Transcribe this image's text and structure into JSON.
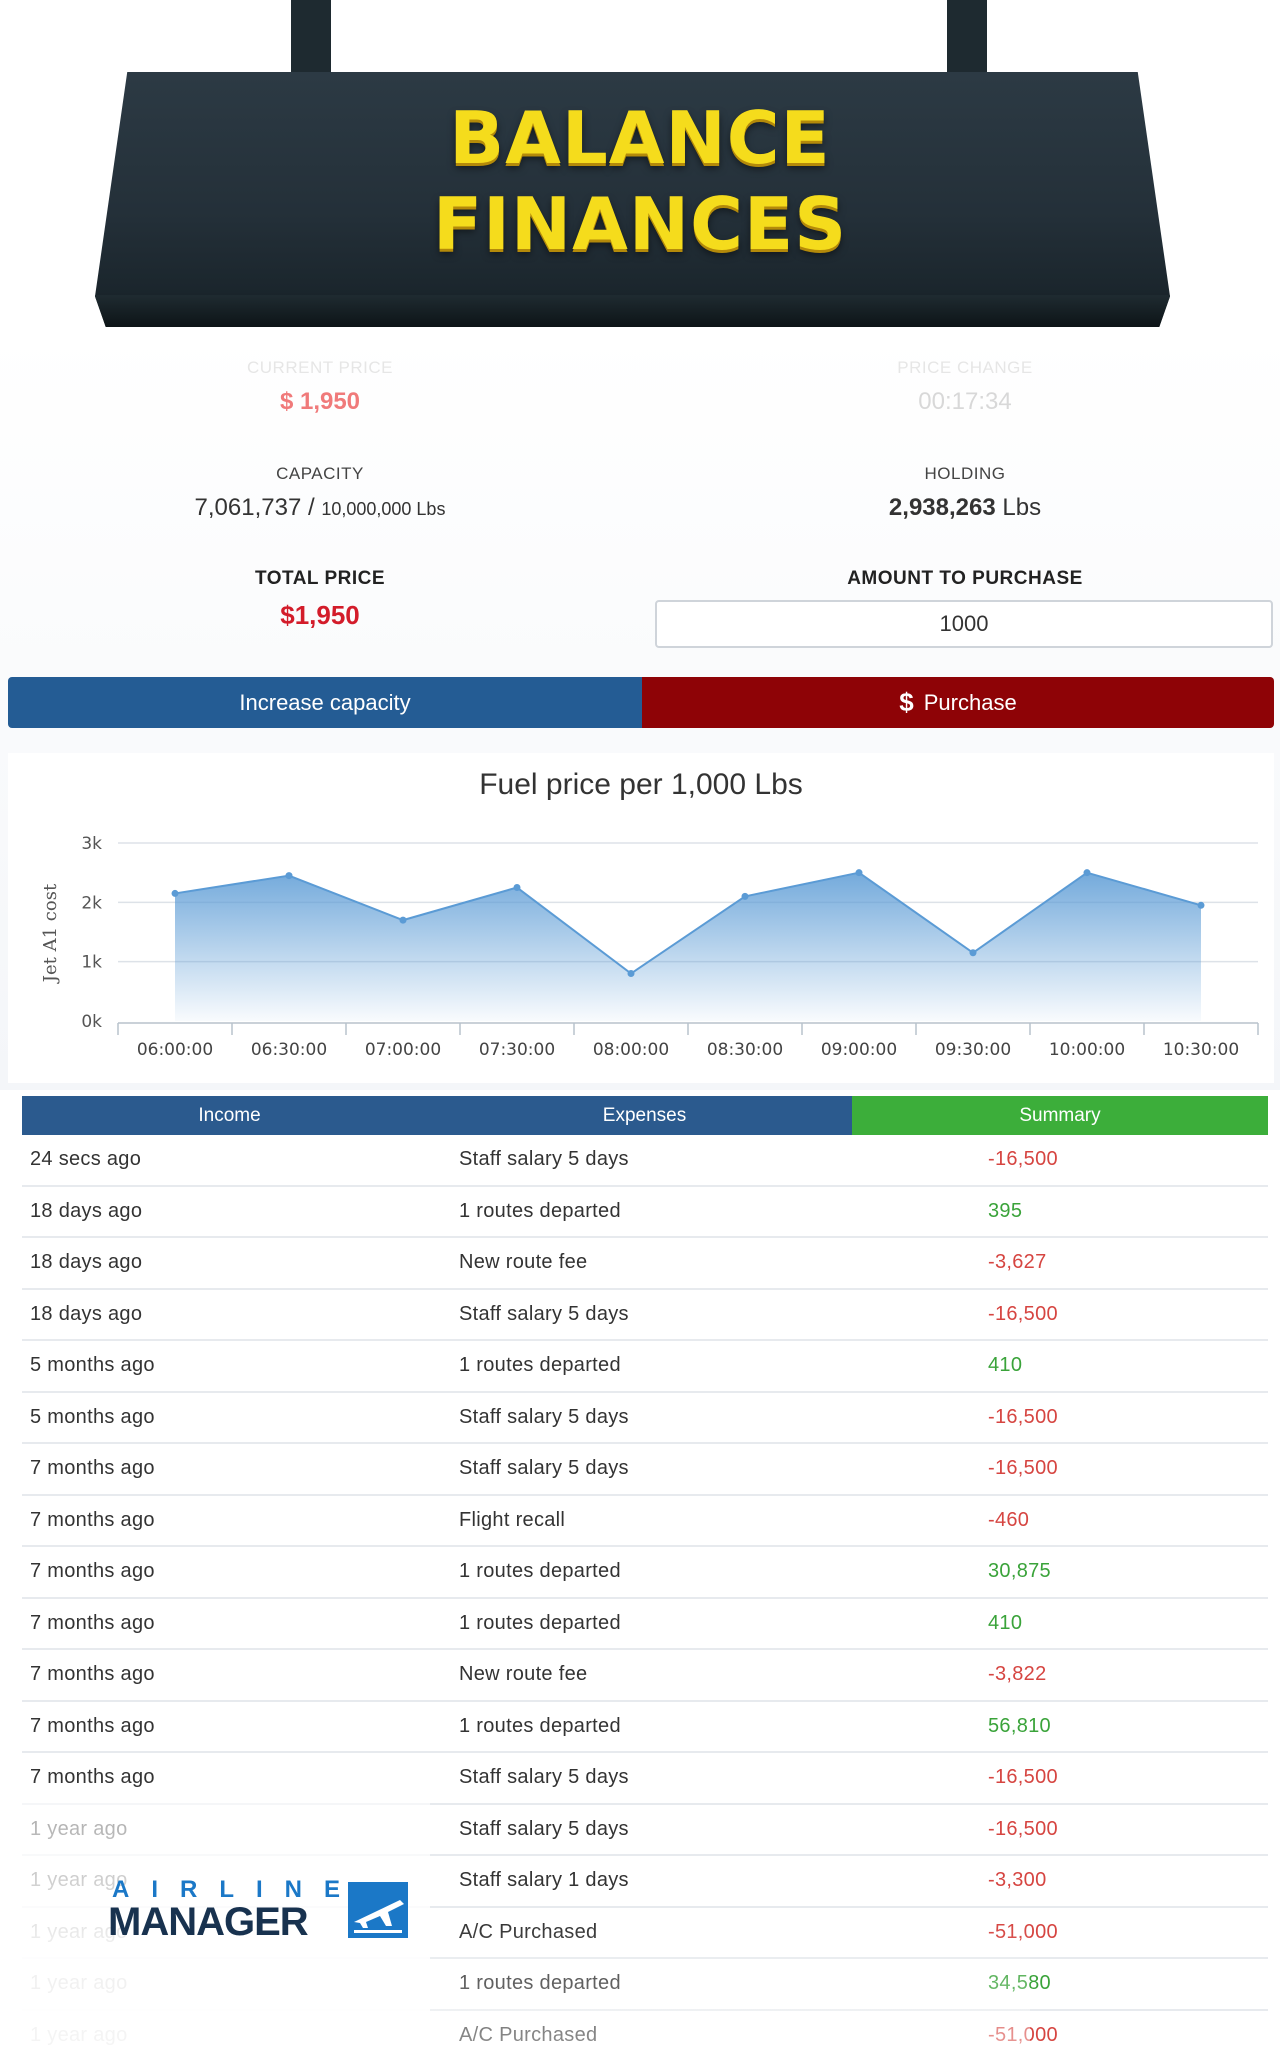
{
  "banner": {
    "line1": "BALANCE",
    "line2": "FINANCES"
  },
  "stats": {
    "current_price": {
      "label": "CURRENT PRICE",
      "value": "$ 1,950"
    },
    "price_change": {
      "label": "PRICE CHANGE",
      "value": "00:17:34"
    },
    "capacity": {
      "label": "CAPACITY",
      "used": "7,061,737",
      "sep": "/",
      "max": "10,000,000 Lbs"
    },
    "holding": {
      "label": "HOLDING",
      "value": "2,938,263",
      "unit": "Lbs"
    },
    "total_price": {
      "label": "TOTAL PRICE",
      "value": "$1,950"
    },
    "amount": {
      "label": "AMOUNT TO PURCHASE",
      "value": "1000"
    }
  },
  "buttons": {
    "increase_capacity": "Increase capacity",
    "purchase_icon": "$",
    "purchase": "Purchase"
  },
  "colors": {
    "blue": "#245c94",
    "red": "#8e0306",
    "green": "#3cae3a",
    "banner_text": "#f5dc1c"
  },
  "chart_data": {
    "type": "area",
    "title": "Fuel price per 1,000 Lbs",
    "ylabel": "Jet A1 cost",
    "xlabel": "",
    "ylim": [
      0,
      3000
    ],
    "yticks": [
      "0k",
      "1k",
      "2k",
      "3k"
    ],
    "categories": [
      "06:00:00",
      "06:30:00",
      "07:00:00",
      "07:30:00",
      "08:00:00",
      "08:30:00",
      "09:00:00",
      "09:30:00",
      "10:00:00",
      "10:30:00"
    ],
    "values": [
      2150,
      2450,
      1700,
      2250,
      800,
      2100,
      2500,
      1150,
      2500,
      1950
    ],
    "grid": true,
    "color": "#5b9bd5"
  },
  "table": {
    "headers": [
      "Income",
      "Expenses",
      "Summary"
    ],
    "rows": [
      {
        "time": "24 secs ago",
        "desc": "Staff salary 5 days",
        "amount": "-16,500",
        "sign": "neg"
      },
      {
        "time": "18 days ago",
        "desc": "1 routes departed",
        "amount": "395",
        "sign": "pos"
      },
      {
        "time": "18 days ago",
        "desc": "New route fee",
        "amount": "-3,627",
        "sign": "neg"
      },
      {
        "time": "18 days ago",
        "desc": "Staff salary 5 days",
        "amount": "-16,500",
        "sign": "neg"
      },
      {
        "time": "5 months ago",
        "desc": "1 routes departed",
        "amount": "410",
        "sign": "pos"
      },
      {
        "time": "5 months ago",
        "desc": "Staff salary 5 days",
        "amount": "-16,500",
        "sign": "neg"
      },
      {
        "time": "7 months ago",
        "desc": "Staff salary 5 days",
        "amount": "-16,500",
        "sign": "neg"
      },
      {
        "time": "7 months ago",
        "desc": "Flight recall",
        "amount": "-460",
        "sign": "neg"
      },
      {
        "time": "7 months ago",
        "desc": "1 routes departed",
        "amount": "30,875",
        "sign": "pos"
      },
      {
        "time": "7 months ago",
        "desc": "1 routes departed",
        "amount": "410",
        "sign": "pos"
      },
      {
        "time": "7 months ago",
        "desc": "New route fee",
        "amount": "-3,822",
        "sign": "neg"
      },
      {
        "time": "7 months ago",
        "desc": "1 routes departed",
        "amount": "56,810",
        "sign": "pos"
      },
      {
        "time": "7 months ago",
        "desc": "Staff salary 5 days",
        "amount": "-16,500",
        "sign": "neg"
      },
      {
        "time": "1 year ago",
        "desc": "Staff salary 5 days",
        "amount": "-16,500",
        "sign": "neg"
      },
      {
        "time": "1 year ago",
        "desc": "Staff salary 1 days",
        "amount": "-3,300",
        "sign": "neg"
      },
      {
        "time": "1 year ago",
        "desc": "A/C Purchased",
        "amount": "-51,000",
        "sign": "neg"
      },
      {
        "time": "1 year ago",
        "desc": "1 routes departed",
        "amount": "34,580",
        "sign": "pos"
      },
      {
        "time": "1 year ago",
        "desc": "A/C Purchased",
        "amount": "-51,000",
        "sign": "neg"
      }
    ]
  },
  "logo": {
    "word1": "AIRLINE",
    "word2": "MANAGER"
  }
}
